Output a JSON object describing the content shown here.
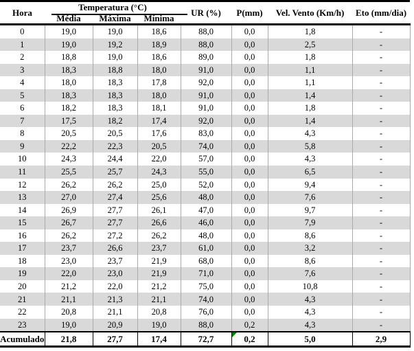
{
  "colors": {
    "row_alt_background": "#d9d9d9",
    "grid_line": "#a9a9a9",
    "table_border": "#000000",
    "flag_green": "#008000"
  },
  "chart_data": {
    "type": "table",
    "title": "",
    "column_group": {
      "label": "Temperatura (°C)",
      "spans": [
        "Média",
        "Máxima",
        "Mínima"
      ]
    },
    "header": {
      "hora": "Hora",
      "temp_group": "Temperatura (°C)",
      "media": "Média",
      "maxima": "Máxima",
      "minima": "Mínima",
      "ur": "UR (%)",
      "p": "P(mm)",
      "vento": "Vel. Vento (Km/h)",
      "eto": "Eto (mm/dia)"
    },
    "columns": [
      "Hora",
      "Média",
      "Máxima",
      "Mínima",
      "UR (%)",
      "P(mm)",
      "Vel. Vento (Km/h)",
      "Eto (mm/dia)"
    ],
    "rows": [
      [
        "0",
        "19,0",
        "19,0",
        "18,6",
        "88,0",
        "0,0",
        "1,8",
        "-"
      ],
      [
        "1",
        "19,0",
        "19,2",
        "18,9",
        "88,0",
        "0,0",
        "2,5",
        "-"
      ],
      [
        "2",
        "18,8",
        "19,0",
        "18,6",
        "89,0",
        "0,0",
        "1,8",
        "-"
      ],
      [
        "3",
        "18,3",
        "18,8",
        "18,0",
        "91,0",
        "0,0",
        "1,1",
        "-"
      ],
      [
        "4",
        "18,0",
        "18,3",
        "17,8",
        "92,0",
        "0,0",
        "1,1",
        "-"
      ],
      [
        "5",
        "18,3",
        "18,3",
        "18,0",
        "91,0",
        "0,0",
        "1,4",
        "-"
      ],
      [
        "6",
        "18,2",
        "18,3",
        "18,1",
        "91,0",
        "0,0",
        "1,8",
        "-"
      ],
      [
        "7",
        "17,5",
        "18,2",
        "17,4",
        "92,0",
        "0,0",
        "1,4",
        "-"
      ],
      [
        "8",
        "20,5",
        "20,5",
        "17,6",
        "83,0",
        "0,0",
        "4,3",
        "-"
      ],
      [
        "9",
        "22,2",
        "22,3",
        "20,5",
        "74,0",
        "0,0",
        "5,8",
        "-"
      ],
      [
        "10",
        "24,3",
        "24,4",
        "22,0",
        "57,0",
        "0,0",
        "4,3",
        "-"
      ],
      [
        "11",
        "25,5",
        "25,7",
        "24,3",
        "55,0",
        "0,0",
        "6,5",
        "-"
      ],
      [
        "12",
        "26,2",
        "26,2",
        "25,0",
        "52,0",
        "0,0",
        "9,4",
        "-"
      ],
      [
        "13",
        "27,0",
        "27,4",
        "25,6",
        "48,0",
        "0,0",
        "7,6",
        "-"
      ],
      [
        "14",
        "26,9",
        "27,7",
        "26,1",
        "47,0",
        "0,0",
        "9,7",
        "-"
      ],
      [
        "15",
        "26,7",
        "27,7",
        "26,6",
        "46,0",
        "0,0",
        "7,9",
        "-"
      ],
      [
        "16",
        "26,2",
        "27,2",
        "26,2",
        "48,0",
        "0,0",
        "8,6",
        "-"
      ],
      [
        "17",
        "23,7",
        "26,6",
        "23,7",
        "61,0",
        "0,0",
        "3,2",
        "-"
      ],
      [
        "18",
        "23,0",
        "23,7",
        "21,9",
        "68,0",
        "0,0",
        "8,6",
        "-"
      ],
      [
        "19",
        "22,0",
        "23,0",
        "21,9",
        "71,0",
        "0,0",
        "7,6",
        "-"
      ],
      [
        "20",
        "21,2",
        "22,0",
        "21,2",
        "75,0",
        "0,0",
        "10,8",
        "-"
      ],
      [
        "21",
        "21,1",
        "21,3",
        "21,1",
        "74,0",
        "0,0",
        "4,3",
        "-"
      ],
      [
        "22",
        "20,8",
        "21,1",
        "20,8",
        "76,0",
        "0,0",
        "4,3",
        "-"
      ],
      [
        "23",
        "19,0",
        "20,9",
        "19,0",
        "88,0",
        "0,2",
        "4,3",
        "-"
      ]
    ],
    "footer": {
      "label": "Acumulado",
      "values": [
        "21,8",
        "27,7",
        "17,4",
        "72,7",
        "0,2",
        "5,0",
        "2,9"
      ]
    }
  }
}
